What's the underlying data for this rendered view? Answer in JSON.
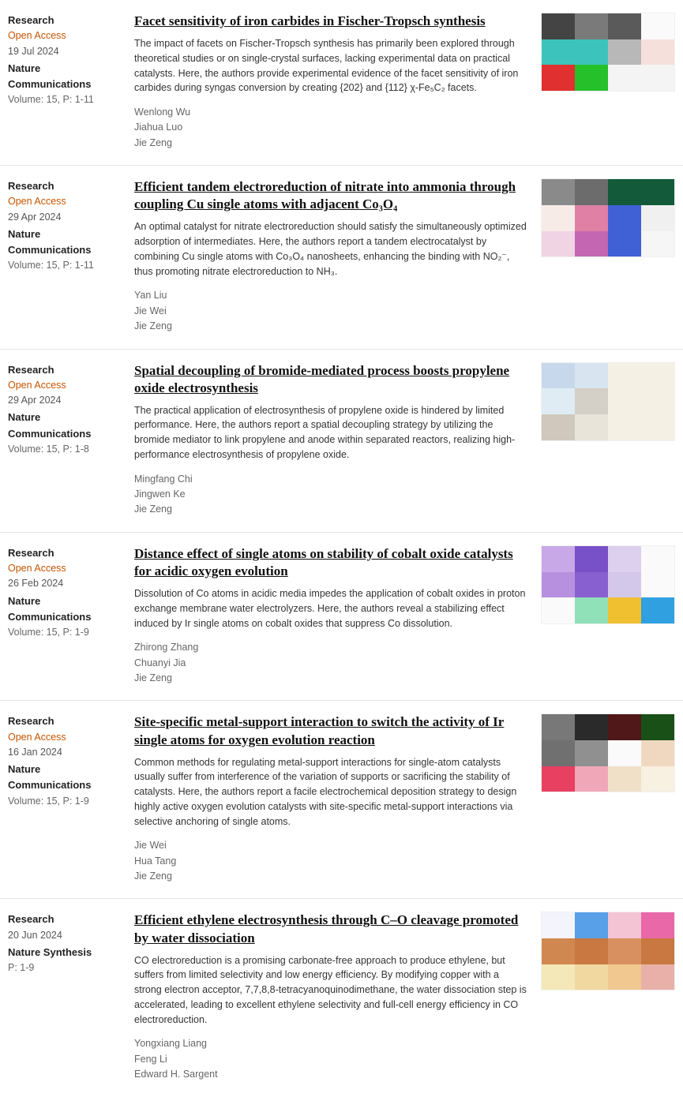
{
  "articles": [
    {
      "type": "Research",
      "access": "Open Access",
      "date": "19 Jul 2024",
      "journal": "Nature Communications",
      "volume": "Volume: 15, P: 1-11",
      "title": "Facet sensitivity of iron carbides in Fischer-Tropsch synthesis",
      "summary": "The impact of facets on Fischer-Tropsch synthesis has primarily been explored through theoretical studies or on single-crystal surfaces, lacking experimental data on practical catalysts. Here, the authors provide experimental evidence of the facet sensitivity of iron carbides during syngas conversion by creating {202} and {112} χ-Fe₅C₂ facets.",
      "authors": [
        "Wenlong Wu",
        "Jiahua Luo",
        "Jie Zeng"
      ],
      "thumb_colors": [
        [
          "#444",
          "#7a7a7a",
          "#5a5a5a",
          "#fafafa"
        ],
        [
          "#3cc4bc",
          "#3cc4bc",
          "#b8b8b8",
          "#f6e0dc"
        ],
        [
          "#e03030",
          "#26c02a",
          "#f4f4f4",
          "#f4f4f4"
        ]
      ]
    },
    {
      "type": "Research",
      "access": "Open Access",
      "date": "29 Apr 2024",
      "journal": "Nature Communications",
      "volume": "Volume: 15, P: 1-11",
      "title": "Efficient tandem electroreduction of nitrate into ammonia through coupling Cu single atoms with adjacent Co₃O₄",
      "summary": "An optimal catalyst for nitrate electroreduction should satisfy the simultaneously optimized adsorption of intermediates. Here, the authors report a tandem electrocatalyst by combining Cu single atoms with Co₃O₄ nanosheets, enhancing the binding with NO₂⁻, thus promoting nitrate electroreduction to NH₃.",
      "authors": [
        "Yan Liu",
        "Jie Wei",
        "Jie Zeng"
      ],
      "thumb_colors": [
        [
          "#8a8a8a",
          "#6c6c6c",
          "#125a3a",
          "#125a3a"
        ],
        [
          "#f7ebe8",
          "#e080a4",
          "#4060d6",
          "#f0f0f0"
        ],
        [
          "#f0d4e4",
          "#c466b2",
          "#4060d6",
          "#f6f6f6"
        ]
      ]
    },
    {
      "type": "Research",
      "access": "Open Access",
      "date": "29 Apr 2024",
      "journal": "Nature Communications",
      "volume": "Volume: 15, P: 1-8",
      "title": "Spatial decoupling of bromide-mediated process boosts propylene oxide electrosynthesis",
      "summary": "The practical application of electrosynthesis of propylene oxide is hindered by limited performance. Here, the authors report a spatial decoupling strategy by utilizing the bromide mediator to link propylene and anode within separated reactors, realizing high-performance electrosynthesis of propylene oxide.",
      "authors": [
        "Mingfang Chi",
        "Jingwen Ke",
        "Jie Zeng"
      ],
      "thumb_colors": [
        [
          "#c8d8ec",
          "#d8e4f0",
          "#f4f0e4",
          "#f4f0e4"
        ],
        [
          "#e0ecf4",
          "#d4cfc7",
          "#f4f0e4",
          "#f4f0e4"
        ],
        [
          "#d0c8bc",
          "#e8e4da",
          "#f4f0e4",
          "#f4f0e4"
        ]
      ]
    },
    {
      "type": "Research",
      "access": "Open Access",
      "date": "26 Feb 2024",
      "journal": "Nature Communications",
      "volume": "Volume: 15, P: 1-9",
      "title": "Distance effect of single atoms on stability of cobalt oxide catalysts for acidic oxygen evolution",
      "summary": "Dissolution of Co atoms in acidic media impedes the application of cobalt oxides in proton exchange membrane water electrolyzers. Here, the authors reveal a stabilizing effect induced by Ir single atoms on cobalt oxides that suppress Co dissolution.",
      "authors": [
        "Zhirong Zhang",
        "Chuanyi Jia",
        "Jie Zeng"
      ],
      "thumb_colors": [
        [
          "#c8a8e6",
          "#7850c8",
          "#dcd0ee",
          "#fafafa"
        ],
        [
          "#b890e0",
          "#8860d0",
          "#d4c8ea",
          "#fafafa"
        ],
        [
          "#fafafa",
          "#90e0b8",
          "#f0c030",
          "#30a0e0"
        ]
      ]
    },
    {
      "type": "Research",
      "access": "Open Access",
      "date": "16 Jan 2024",
      "journal": "Nature Communications",
      "volume": "Volume: 15, P: 1-9",
      "title": "Site-specific metal-support interaction to switch the activity of Ir single atoms for oxygen evolution reaction",
      "summary": "Common methods for regulating metal-support interactions for single-atom catalysts usually suffer from interference of the variation of supports or sacrificing the stability of catalysts. Here, the authors report a facile electrochemical deposition strategy to design highly active oxygen evolution catalysts with site-specific metal-support interactions via selective anchoring of single atoms.",
      "authors": [
        "Jie Wei",
        "Hua Tang",
        "Jie Zeng"
      ],
      "thumb_colors": [
        [
          "#787878",
          "#2a2a2a",
          "#501818",
          "#185018"
        ],
        [
          "#707070",
          "#909090",
          "#fafafa",
          "#f0d8c0"
        ],
        [
          "#e84060",
          "#f0a8b8",
          "#f0e0c8",
          "#f8f0e0"
        ]
      ]
    },
    {
      "type": "Research",
      "access": "",
      "date": "20 Jun 2024",
      "journal": "Nature Synthesis",
      "volume": "P: 1-9",
      "title": "Efficient ethylene electrosynthesis through C–O cleavage promoted by water dissociation",
      "summary": "CO electroreduction is a promising carbonate-free approach to produce ethylene, but suffers from limited selectivity and low energy efficiency. By modifying copper with a strong electron acceptor, 7,7,8,8-tetracyanoquinodimethane, the water dissociation step is accelerated, leading to excellent ethylene selectivity and full-cell energy efficiency in CO electroreduction.",
      "authors": [
        "Yongxiang Liang",
        "Feng Li",
        "Edward H. Sargent"
      ],
      "thumb_colors": [
        [
          "#f4f4fc",
          "#58a0e8",
          "#f4c4d4",
          "#e868a8"
        ],
        [
          "#d08850",
          "#c87840",
          "#d89060",
          "#c87840"
        ],
        [
          "#f4e8b8",
          "#f0d8a0",
          "#f0c890",
          "#e8b0a8"
        ]
      ]
    }
  ]
}
